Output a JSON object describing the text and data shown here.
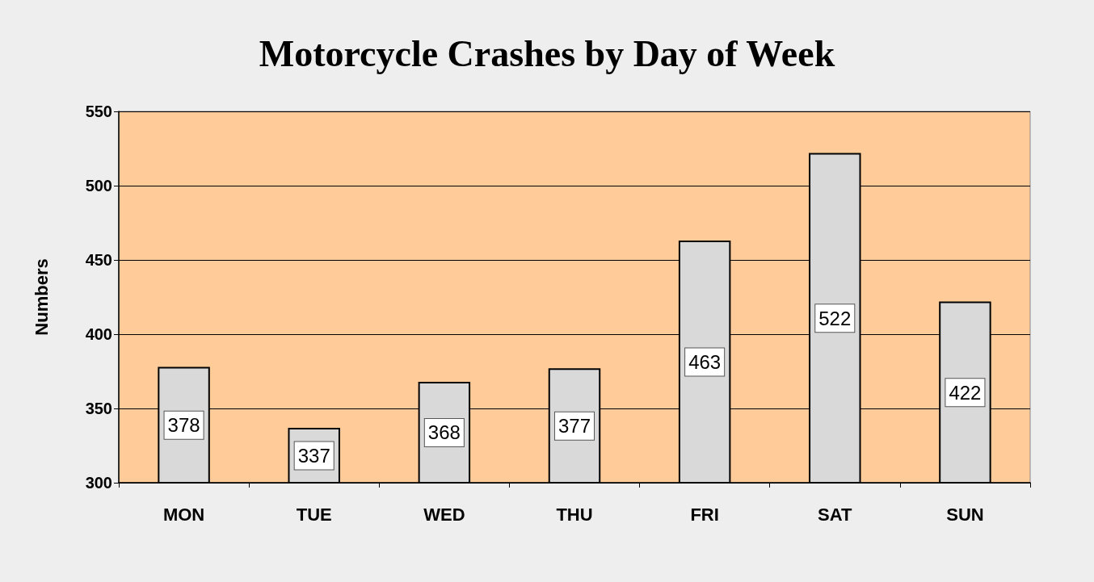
{
  "chart_data": {
    "type": "bar",
    "title": "Motorcycle Crashes by Day of Week",
    "ylabel": "Numbers",
    "categories": [
      "MON",
      "TUE",
      "WED",
      "THU",
      "FRI",
      "SAT",
      "SUN"
    ],
    "values": [
      378,
      337,
      368,
      377,
      463,
      522,
      422
    ],
    "color": "#d9d9d9",
    "ylim": [
      300,
      550
    ],
    "yticks": [
      300,
      350,
      400,
      450,
      500,
      550
    ],
    "grid": "y",
    "data_labels": true
  }
}
